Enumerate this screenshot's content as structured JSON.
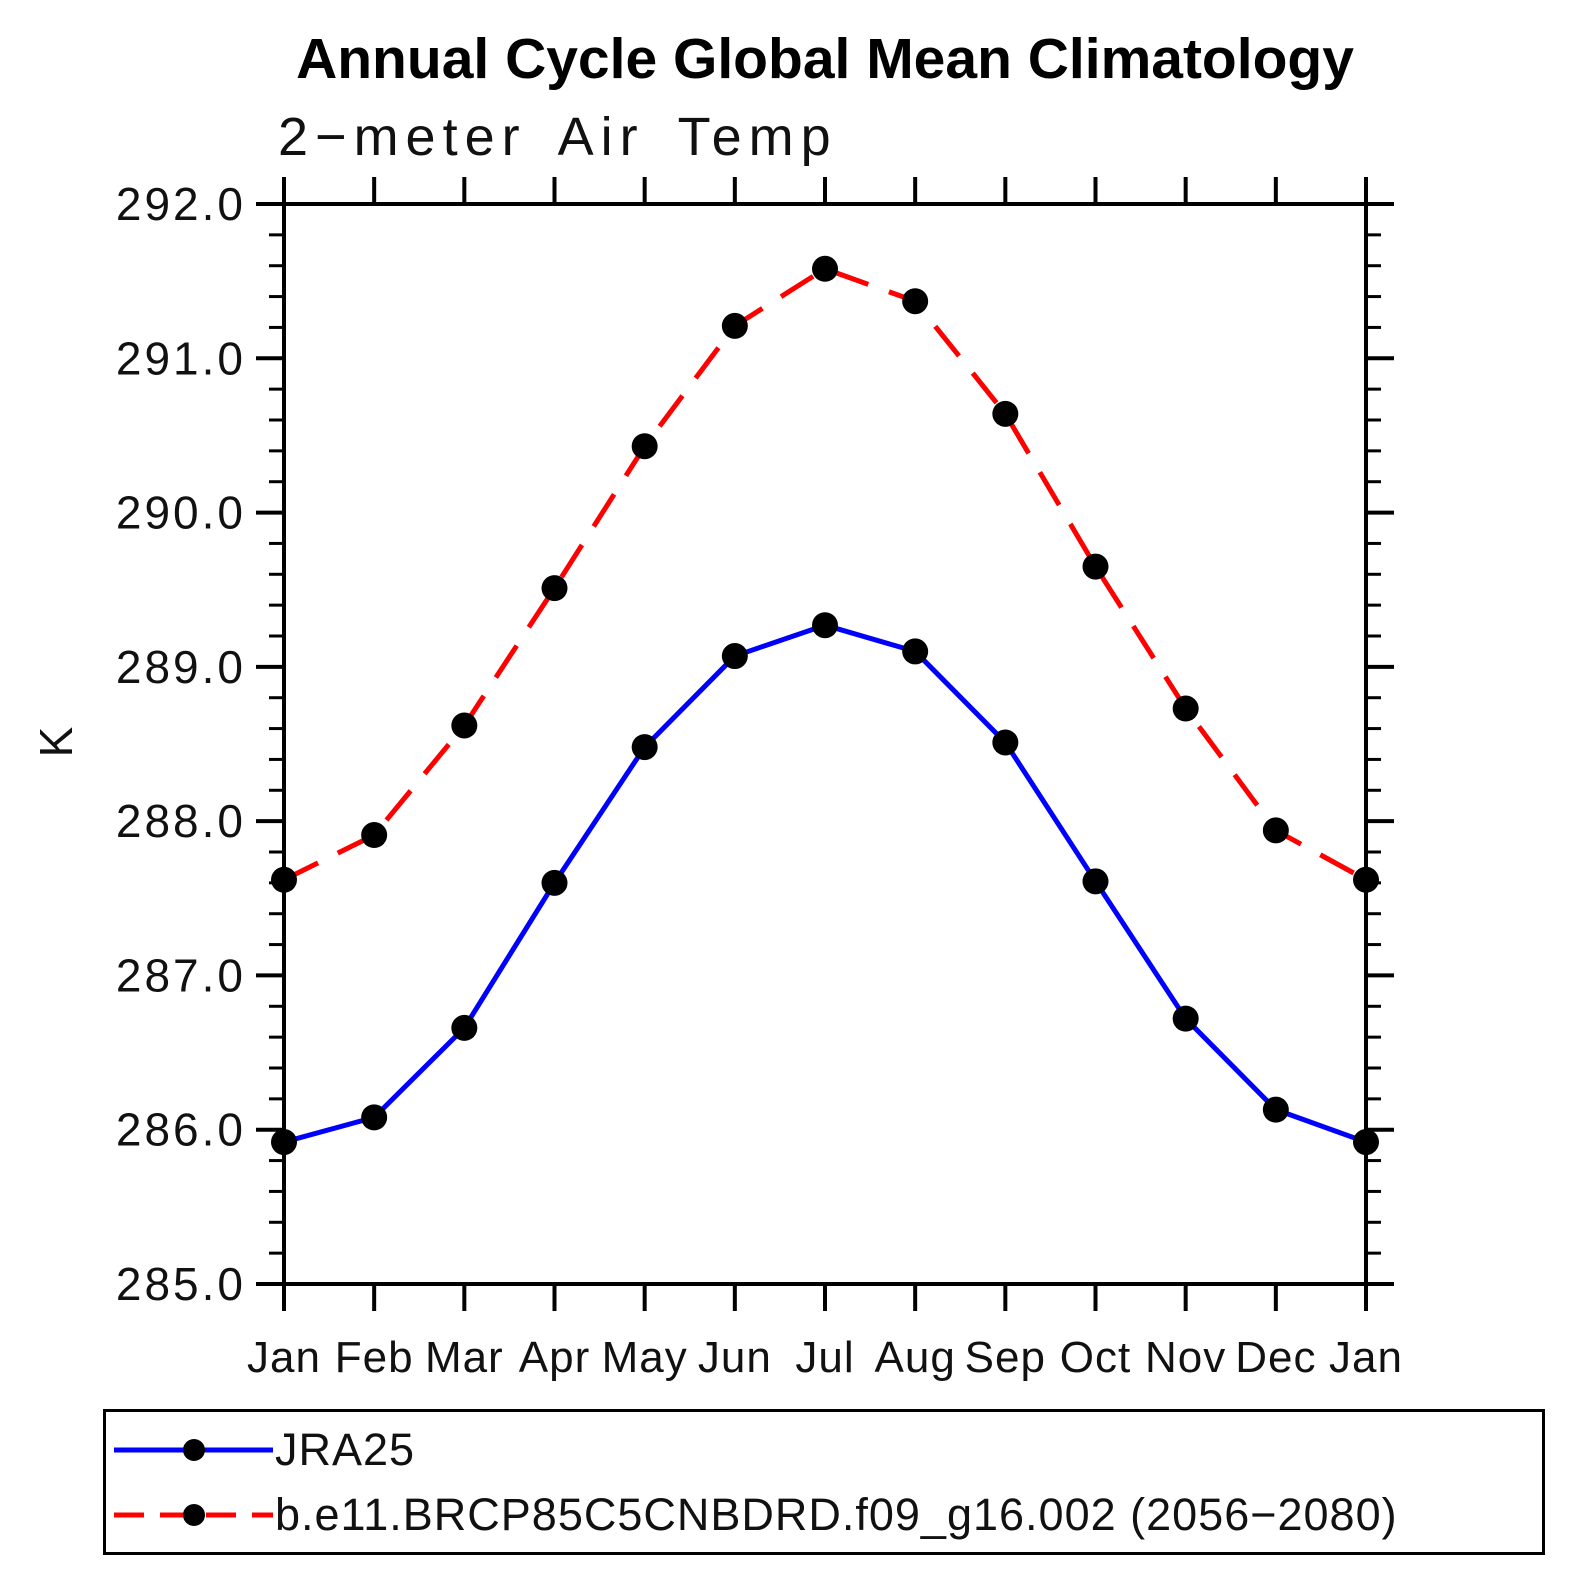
{
  "title": "Annual Cycle Global Mean Climatology",
  "subtitle": "2−meter Air Temp",
  "y_axis_label": "K",
  "chart_data": {
    "type": "line",
    "title": "Annual Cycle Global Mean Climatology",
    "subtitle": "2−meter Air Temp",
    "xlabel": "",
    "ylabel": "K",
    "ylim": [
      285.0,
      292.0
    ],
    "y_major_step": 1.0,
    "y_minor_step": 0.2,
    "y_tick_labels": [
      "285.0",
      "286.0",
      "287.0",
      "288.0",
      "289.0",
      "290.0",
      "291.0",
      "292.0"
    ],
    "grid": false,
    "legend_position": "bottom",
    "categories": [
      "Jan",
      "Feb",
      "Mar",
      "Apr",
      "May",
      "Jun",
      "Jul",
      "Aug",
      "Sep",
      "Oct",
      "Nov",
      "Dec",
      "Jan"
    ],
    "series": [
      {
        "name": "JRA25",
        "color": "#0000ff",
        "line_style": "solid",
        "marker": "circle",
        "marker_color": "#000000",
        "values": [
          285.92,
          286.08,
          286.66,
          287.6,
          288.48,
          289.07,
          289.27,
          289.1,
          288.51,
          287.61,
          286.72,
          286.13,
          285.92
        ]
      },
      {
        "name": "b.e11.BRCP85C5CNBDRD.f09_g16.002 (2056−2080)",
        "color": "#ff0000",
        "line_style": "dashed",
        "marker": "circle",
        "marker_color": "#000000",
        "values": [
          287.62,
          287.91,
          288.62,
          289.51,
          290.43,
          291.21,
          291.58,
          291.37,
          290.64,
          289.65,
          288.73,
          287.94,
          287.62
        ]
      }
    ]
  },
  "colors": {
    "axis": "#000000",
    "background": "#ffffff",
    "series_blue": "#0000ff",
    "series_red": "#ff0000",
    "marker": "#000000"
  }
}
